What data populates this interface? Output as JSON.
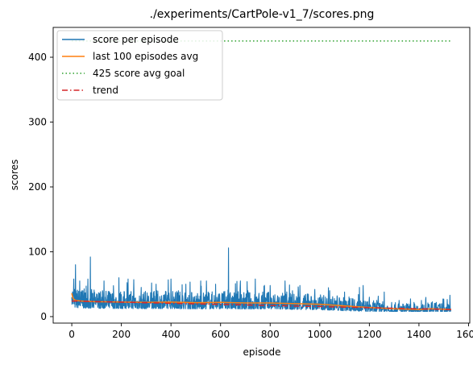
{
  "chart_data": {
    "type": "line",
    "title": "./experiments/CartPole-v1_7/scores.png",
    "xlabel": "episode",
    "ylabel": "scores",
    "xlim": [
      -75,
      1605
    ],
    "ylim": [
      -10,
      446
    ],
    "xticks": [
      0,
      200,
      400,
      600,
      800,
      1000,
      1200,
      1400,
      1600
    ],
    "yticks": [
      0,
      100,
      200,
      300,
      400
    ],
    "grid": false,
    "legend_position": "upper-left",
    "episodes": 1530,
    "series": [
      {
        "name": "score per episode",
        "color": "#1f77b4",
        "style": "solid",
        "x": [
          0,
          8,
          15,
          22,
          32,
          45,
          60,
          75,
          100,
          130,
          160,
          190,
          220,
          250,
          280,
          310,
          340,
          370,
          400,
          430,
          460,
          490,
          520,
          550,
          580,
          610,
          632,
          650,
          680,
          710,
          740,
          770,
          800,
          830,
          860,
          890,
          920,
          950,
          980,
          1010,
          1040,
          1070,
          1100,
          1130,
          1160,
          1175,
          1200,
          1230,
          1260,
          1290,
          1320,
          1350,
          1380,
          1410,
          1440,
          1470,
          1500,
          1515,
          1525
        ],
        "y": [
          30,
          58,
          80,
          22,
          55,
          40,
          28,
          92,
          35,
          55,
          25,
          60,
          28,
          57,
          45,
          30,
          50,
          33,
          58,
          40,
          50,
          30,
          55,
          38,
          50,
          35,
          106,
          30,
          55,
          40,
          58,
          38,
          48,
          32,
          55,
          40,
          48,
          35,
          42,
          30,
          40,
          32,
          38,
          28,
          45,
          48,
          30,
          25,
          38,
          22,
          25,
          20,
          22,
          25,
          18,
          22,
          27,
          16,
          33
        ]
      },
      {
        "name": "last 100 episodes avg",
        "color": "#ff7f0e",
        "style": "solid",
        "x": [
          0,
          5,
          15,
          40,
          100,
          200,
          300,
          400,
          500,
          600,
          700,
          800,
          900,
          1000,
          1100,
          1200,
          1300,
          1400,
          1450,
          1500,
          1530
        ],
        "y": [
          36,
          28,
          25,
          24,
          23,
          22.5,
          22,
          22.5,
          21.5,
          22,
          21,
          21,
          20,
          19,
          16.5,
          14,
          12,
          11,
          12,
          11.5,
          11
        ]
      },
      {
        "name": "425 score avg goal",
        "color": "#2ca02c",
        "style": "dotted",
        "x": [
          0,
          1530
        ],
        "y": [
          425,
          425
        ]
      },
      {
        "name": "trend",
        "color": "#d62728",
        "style": "dashdot",
        "x": [
          0,
          1530
        ],
        "y": [
          24,
          11
        ]
      }
    ]
  }
}
